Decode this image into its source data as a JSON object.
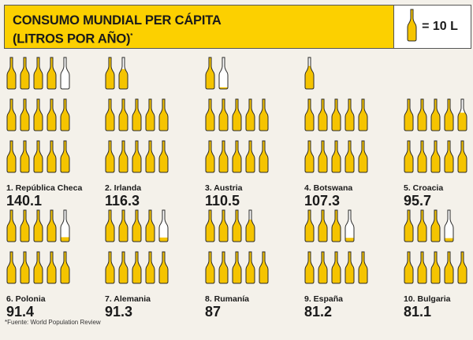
{
  "header": {
    "title_line1": "CONSUMO MUNDIAL PER CÁPITA",
    "title_line2": "(LITROS POR AÑO)",
    "asterisk": "*",
    "legend_label": "= 10 L"
  },
  "colors": {
    "banner": "#fcd000",
    "bottle_fill": "#f5c400",
    "outline": "#2a2a2a",
    "background": "#f4f1ea"
  },
  "chart_data": {
    "type": "pictogram",
    "title": "CONSUMO MUNDIAL PER CÁPITA (LITROS POR AÑO)*",
    "unit_per_icon": 10,
    "items": [
      {
        "rank_label": "1. República Checa",
        "value": 140.1,
        "value_label": "140.1"
      },
      {
        "rank_label": "2. Irlanda",
        "value": 116.3,
        "value_label": "116.3"
      },
      {
        "rank_label": "3. Austria",
        "value": 110.5,
        "value_label": "110.5"
      },
      {
        "rank_label": "4. Botswana",
        "value": 107.3,
        "value_label": "107.3"
      },
      {
        "rank_label": "5. Croacia",
        "value": 95.7,
        "value_label": "95.7"
      },
      {
        "rank_label": "6. Polonia",
        "value": 91.4,
        "value_label": "91.4"
      },
      {
        "rank_label": "7. Alemania",
        "value": 91.3,
        "value_label": "91.3"
      },
      {
        "rank_label": "8. Rumanía",
        "value": 87,
        "value_label": "87"
      },
      {
        "rank_label": "9. España",
        "value": 81.2,
        "value_label": "81.2"
      },
      {
        "rank_label": "10. Bulgaria",
        "value": 81.1,
        "value_label": "81.1"
      }
    ]
  },
  "footnote": "*Fuente: World Population Review"
}
